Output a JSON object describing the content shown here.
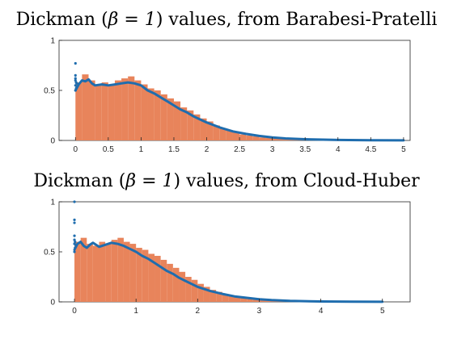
{
  "chart_data": [
    {
      "type": "bar",
      "title": "Dickman (β = 1) values, from Barabesi-Pratelli",
      "title_parts": {
        "pre": "Dickman (",
        "math": "β = 1",
        "post": ") values, from Barabesi-Pratelli"
      },
      "xlabel": "",
      "ylabel": "",
      "xlim": [
        -0.25,
        5.1
      ],
      "ylim": [
        0,
        1
      ],
      "xticks": [
        "0",
        "0.5",
        "1",
        "1.5",
        "2",
        "2.5",
        "3",
        "3.5",
        "4",
        "4.5",
        "5"
      ],
      "xtick_values": [
        0,
        0.5,
        1,
        1.5,
        2,
        2.5,
        3,
        3.5,
        4,
        4.5,
        5
      ],
      "yticks": [
        "0",
        "0.5",
        "1"
      ],
      "ytick_values": [
        0,
        0.5,
        1
      ],
      "grid": false,
      "series": [
        {
          "kind": "histogram",
          "color": "#E8845B",
          "bins": {
            "x": [
              0.0,
              0.1,
              0.2,
              0.3,
              0.4,
              0.5,
              0.6,
              0.7,
              0.8,
              0.9,
              1.0,
              1.1,
              1.2,
              1.3,
              1.4,
              1.5,
              1.6,
              1.7,
              1.8,
              1.9,
              2.0,
              2.1,
              2.2,
              2.3,
              2.4,
              2.5,
              2.6,
              2.7,
              2.8,
              2.9,
              3.0,
              3.2,
              3.4,
              3.6,
              3.8,
              4.0,
              4.5,
              5.0
            ],
            "y": [
              0.58,
              0.66,
              0.6,
              0.56,
              0.58,
              0.56,
              0.6,
              0.62,
              0.64,
              0.6,
              0.56,
              0.52,
              0.5,
              0.46,
              0.42,
              0.39,
              0.33,
              0.3,
              0.26,
              0.22,
              0.19,
              0.15,
              0.12,
              0.1,
              0.08,
              0.06,
              0.05,
              0.04,
              0.03,
              0.025,
              0.02,
              0.015,
              0.01,
              0.007,
              0.005,
              0.003,
              0.001,
              0.0
            ]
          }
        },
        {
          "kind": "line",
          "color": "#1F6DAE",
          "x": [
            0.0,
            0.05,
            0.1,
            0.15,
            0.2,
            0.25,
            0.3,
            0.4,
            0.5,
            0.6,
            0.7,
            0.8,
            0.9,
            1.0,
            1.1,
            1.2,
            1.3,
            1.4,
            1.5,
            1.6,
            1.7,
            1.8,
            1.9,
            2.0,
            2.2,
            2.4,
            2.6,
            2.8,
            3.0,
            3.2,
            3.5,
            4.0,
            4.5,
            5.0
          ],
          "y": [
            0.5,
            0.56,
            0.6,
            0.59,
            0.61,
            0.57,
            0.55,
            0.56,
            0.55,
            0.56,
            0.57,
            0.58,
            0.57,
            0.55,
            0.5,
            0.47,
            0.43,
            0.39,
            0.35,
            0.31,
            0.28,
            0.24,
            0.21,
            0.18,
            0.13,
            0.09,
            0.065,
            0.045,
            0.03,
            0.02,
            0.012,
            0.005,
            0.002,
            0.001
          ]
        },
        {
          "kind": "scatter",
          "color": "#1F6DAE",
          "x": [
            0.0,
            0.0,
            0.0,
            0.0,
            0.0,
            0.0,
            0.01,
            0.01,
            0.02,
            0.02
          ],
          "y": [
            0.77,
            0.65,
            0.62,
            0.6,
            0.55,
            0.5,
            0.58,
            0.52,
            0.57,
            0.53
          ]
        }
      ]
    },
    {
      "type": "bar",
      "title": "Dickman (β = 1) values, from Cloud-Huber",
      "title_parts": {
        "pre": "Dickman (",
        "math": "β = 1",
        "post": ") values, from Cloud-Huber"
      },
      "xlabel": "",
      "ylabel": "",
      "xlim": [
        -0.25,
        5.45
      ],
      "ylim": [
        0,
        1
      ],
      "xticks": [
        "0",
        "1",
        "2",
        "3",
        "4",
        "5"
      ],
      "xtick_values": [
        0,
        1,
        2,
        3,
        4,
        5
      ],
      "yticks": [
        "0",
        "0.5",
        "1"
      ],
      "ytick_values": [
        0,
        0.5,
        1
      ],
      "grid": false,
      "series": [
        {
          "kind": "histogram",
          "color": "#E8845B",
          "bins": {
            "x": [
              0.0,
              0.1,
              0.2,
              0.3,
              0.4,
              0.5,
              0.6,
              0.7,
              0.8,
              0.9,
              1.0,
              1.1,
              1.2,
              1.3,
              1.4,
              1.5,
              1.6,
              1.7,
              1.8,
              1.9,
              2.0,
              2.1,
              2.2,
              2.3,
              2.4,
              2.5,
              2.6,
              2.7,
              2.8,
              2.9,
              3.0,
              3.2,
              3.4,
              3.6,
              3.8,
              4.0,
              4.5,
              5.0
            ],
            "y": [
              0.6,
              0.64,
              0.58,
              0.56,
              0.6,
              0.58,
              0.62,
              0.64,
              0.6,
              0.58,
              0.54,
              0.52,
              0.48,
              0.46,
              0.42,
              0.38,
              0.34,
              0.3,
              0.25,
              0.22,
              0.18,
              0.15,
              0.12,
              0.1,
              0.08,
              0.06,
              0.05,
              0.04,
              0.03,
              0.025,
              0.02,
              0.015,
              0.01,
              0.007,
              0.005,
              0.003,
              0.001,
              0.0
            ]
          }
        },
        {
          "kind": "line",
          "color": "#1F6DAE",
          "x": [
            0.0,
            0.05,
            0.1,
            0.15,
            0.2,
            0.25,
            0.3,
            0.4,
            0.5,
            0.6,
            0.7,
            0.8,
            0.9,
            1.0,
            1.1,
            1.2,
            1.3,
            1.4,
            1.5,
            1.6,
            1.7,
            1.8,
            1.9,
            2.0,
            2.2,
            2.4,
            2.6,
            2.8,
            3.0,
            3.2,
            3.5,
            4.0,
            4.5,
            5.0
          ],
          "y": [
            0.52,
            0.58,
            0.6,
            0.56,
            0.54,
            0.57,
            0.59,
            0.55,
            0.57,
            0.59,
            0.58,
            0.56,
            0.53,
            0.5,
            0.46,
            0.43,
            0.39,
            0.35,
            0.31,
            0.28,
            0.24,
            0.21,
            0.18,
            0.15,
            0.11,
            0.08,
            0.055,
            0.04,
            0.027,
            0.018,
            0.01,
            0.004,
            0.002,
            0.001
          ]
        },
        {
          "kind": "scatter",
          "color": "#1F6DAE",
          "x": [
            0.0,
            0.0,
            0.0,
            0.0,
            0.0,
            0.0,
            0.0,
            0.01,
            0.01,
            0.02
          ],
          "y": [
            1.0,
            0.82,
            0.79,
            0.66,
            0.62,
            0.58,
            0.5,
            0.6,
            0.54,
            0.57
          ]
        }
      ]
    }
  ]
}
